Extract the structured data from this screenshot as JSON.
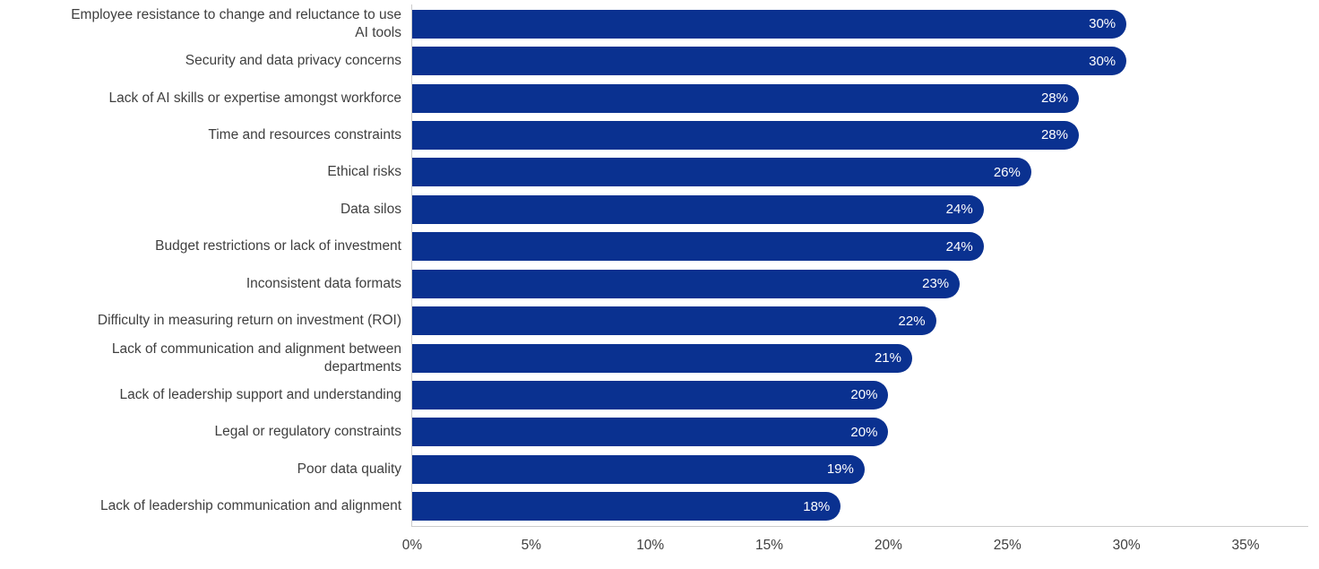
{
  "chart_data": {
    "type": "bar",
    "orientation": "horizontal",
    "title": "",
    "categories": [
      "Employee resistance to change and reluctance to use\nAI tools",
      "Security and data privacy concerns",
      "Lack of AI skills or expertise amongst workforce",
      "Time and resources constraints",
      "Ethical risks",
      "Data silos",
      "Budget restrictions or lack of investment",
      "Inconsistent data formats",
      "Difficulty in measuring return on investment (ROI)",
      "Lack of communication and alignment between\ndepartments",
      "Lack of leadership support and understanding",
      "Legal or regulatory constraints",
      "Poor data quality",
      "Lack of leadership communication and alignment"
    ],
    "values": [
      30,
      30,
      28,
      28,
      26,
      24,
      24,
      23,
      22,
      21,
      20,
      20,
      19,
      18
    ],
    "value_labels": [
      "30%",
      "30%",
      "28%",
      "28%",
      "26%",
      "24%",
      "24%",
      "23%",
      "22%",
      "21%",
      "20%",
      "20%",
      "19%",
      "18%"
    ],
    "xlabel": "",
    "ylabel": "",
    "xlim": [
      0,
      35
    ],
    "x_ticks": [
      "0%",
      "5%",
      "10%",
      "15%",
      "20%",
      "25%",
      "30%",
      "35%"
    ],
    "x_tick_values": [
      0,
      5,
      10,
      15,
      20,
      25,
      30,
      35
    ],
    "grid": false,
    "legend_position": null,
    "colors": {
      "bar": "#0a3190",
      "value_label": "#ffffff",
      "category_label": "#3f3f3f",
      "tick_label": "#3f3f3f",
      "axis_line": "#cccccc"
    }
  }
}
